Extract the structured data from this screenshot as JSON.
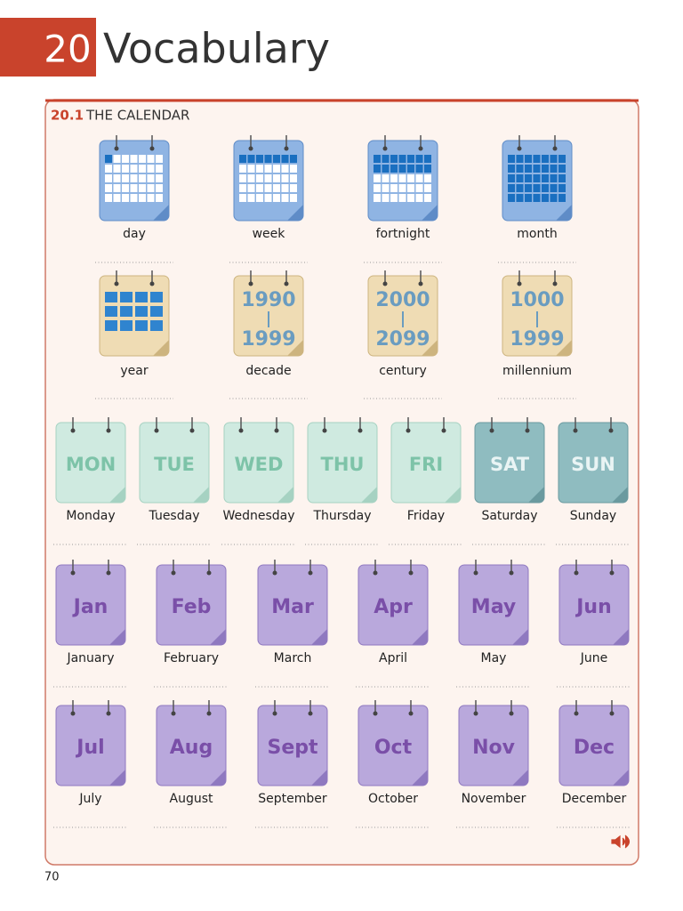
{
  "header": {
    "number": "20",
    "title": "Vocabulary"
  },
  "section": {
    "number": "20.1",
    "title": "THE CALENDAR"
  },
  "periods": [
    {
      "label": "day"
    },
    {
      "label": "week"
    },
    {
      "label": "fortnight"
    },
    {
      "label": "month"
    },
    {
      "label": "year"
    },
    {
      "label": "decade",
      "from": "1990",
      "to": "1999"
    },
    {
      "label": "century",
      "from": "2000",
      "to": "2099"
    },
    {
      "label": "millennium",
      "from": "1000",
      "to": "1999"
    }
  ],
  "days": [
    {
      "abbr": "MON",
      "label": "Monday"
    },
    {
      "abbr": "TUE",
      "label": "Tuesday"
    },
    {
      "abbr": "WED",
      "label": "Wednesday"
    },
    {
      "abbr": "THU",
      "label": "Thursday"
    },
    {
      "abbr": "FRI",
      "label": "Friday"
    },
    {
      "abbr": "SAT",
      "label": "Saturday"
    },
    {
      "abbr": "SUN",
      "label": "Sunday"
    }
  ],
  "months": [
    {
      "abbr": "Jan",
      "label": "January"
    },
    {
      "abbr": "Feb",
      "label": "February"
    },
    {
      "abbr": "Mar",
      "label": "March"
    },
    {
      "abbr": "Apr",
      "label": "April"
    },
    {
      "abbr": "May",
      "label": "May"
    },
    {
      "abbr": "Jun",
      "label": "June"
    },
    {
      "abbr": "Jul",
      "label": "July"
    },
    {
      "abbr": "Aug",
      "label": "August"
    },
    {
      "abbr": "Sept",
      "label": "September"
    },
    {
      "abbr": "Oct",
      "label": "October"
    },
    {
      "abbr": "Nov",
      "label": "November"
    },
    {
      "abbr": "Dec",
      "label": "December"
    }
  ],
  "page_number": "70"
}
